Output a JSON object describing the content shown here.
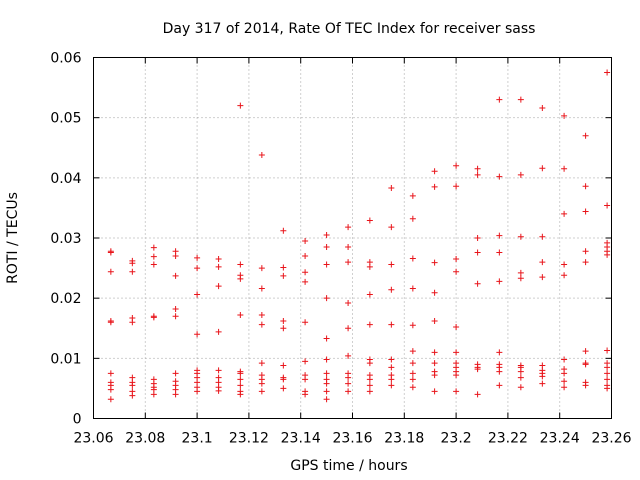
{
  "chart_data": {
    "type": "scatter",
    "title": "Day 317 of 2014, Rate Of TEC Index for receiver sass",
    "xlabel": "GPS time / hours",
    "ylabel": "ROTI / TECUs",
    "xlim": [
      23.06,
      23.26
    ],
    "ylim": [
      0,
      0.06
    ],
    "xticks": [
      23.06,
      23.08,
      23.1,
      23.12,
      23.14,
      23.16,
      23.18,
      23.2,
      23.22,
      23.24,
      23.26
    ],
    "xtick_labels": [
      "23.06",
      "23.08",
      "23.1",
      "23.12",
      "23.14",
      "23.16",
      "23.18",
      "23.2",
      "23.22",
      "23.24",
      "23.26"
    ],
    "yticks": [
      0,
      0.01,
      0.02,
      0.03,
      0.04,
      0.05,
      0.06
    ],
    "ytick_labels": [
      "0",
      "0.01",
      "0.02",
      "0.03",
      "0.04",
      "0.05",
      "0.06"
    ],
    "grid": true,
    "marker": "+",
    "color": "#e8141a",
    "series": [
      {
        "name": "ROTI",
        "points": [
          [
            23.0667,
            0.0278
          ],
          [
            23.0667,
            0.0276
          ],
          [
            23.0667,
            0.0244
          ],
          [
            23.0667,
            0.0162
          ],
          [
            23.0667,
            0.016
          ],
          [
            23.0667,
            0.0075
          ],
          [
            23.0667,
            0.006
          ],
          [
            23.0667,
            0.0055
          ],
          [
            23.0667,
            0.0048
          ],
          [
            23.0667,
            0.0032
          ],
          [
            23.075,
            0.0262
          ],
          [
            23.075,
            0.0258
          ],
          [
            23.075,
            0.0244
          ],
          [
            23.075,
            0.0167
          ],
          [
            23.075,
            0.016
          ],
          [
            23.075,
            0.0068
          ],
          [
            23.075,
            0.006
          ],
          [
            23.075,
            0.0055
          ],
          [
            23.075,
            0.0045
          ],
          [
            23.075,
            0.0038
          ],
          [
            23.0833,
            0.0284
          ],
          [
            23.0833,
            0.0269
          ],
          [
            23.0833,
            0.0256
          ],
          [
            23.0833,
            0.017
          ],
          [
            23.0833,
            0.0168
          ],
          [
            23.0833,
            0.0065
          ],
          [
            23.0833,
            0.0058
          ],
          [
            23.0833,
            0.0052
          ],
          [
            23.0833,
            0.0048
          ],
          [
            23.0833,
            0.004
          ],
          [
            23.0917,
            0.0278
          ],
          [
            23.0917,
            0.027
          ],
          [
            23.0917,
            0.0237
          ],
          [
            23.0917,
            0.0182
          ],
          [
            23.0917,
            0.017
          ],
          [
            23.0917,
            0.0075
          ],
          [
            23.0917,
            0.0062
          ],
          [
            23.0917,
            0.0055
          ],
          [
            23.0917,
            0.0048
          ],
          [
            23.0917,
            0.004
          ],
          [
            23.1,
            0.0267
          ],
          [
            23.1,
            0.025
          ],
          [
            23.1,
            0.0206
          ],
          [
            23.1,
            0.014
          ],
          [
            23.1,
            0.008
          ],
          [
            23.1,
            0.0075
          ],
          [
            23.1,
            0.0068
          ],
          [
            23.1,
            0.006
          ],
          [
            23.1,
            0.0052
          ],
          [
            23.1,
            0.0045
          ],
          [
            23.1083,
            0.0265
          ],
          [
            23.1083,
            0.0252
          ],
          [
            23.1083,
            0.022
          ],
          [
            23.1083,
            0.0144
          ],
          [
            23.1083,
            0.008
          ],
          [
            23.1083,
            0.0068
          ],
          [
            23.1083,
            0.006
          ],
          [
            23.1083,
            0.0052
          ],
          [
            23.1083,
            0.0046
          ],
          [
            23.1167,
            0.052
          ],
          [
            23.1167,
            0.0256
          ],
          [
            23.1167,
            0.0238
          ],
          [
            23.1167,
            0.0232
          ],
          [
            23.1167,
            0.0172
          ],
          [
            23.1167,
            0.0078
          ],
          [
            23.1167,
            0.0075
          ],
          [
            23.1167,
            0.0065
          ],
          [
            23.1167,
            0.0055
          ],
          [
            23.1167,
            0.0045
          ],
          [
            23.1167,
            0.004
          ],
          [
            23.125,
            0.0438
          ],
          [
            23.125,
            0.025
          ],
          [
            23.125,
            0.0216
          ],
          [
            23.125,
            0.0172
          ],
          [
            23.125,
            0.0156
          ],
          [
            23.125,
            0.0092
          ],
          [
            23.125,
            0.0072
          ],
          [
            23.125,
            0.0065
          ],
          [
            23.125,
            0.0058
          ],
          [
            23.125,
            0.0045
          ],
          [
            23.1333,
            0.0312
          ],
          [
            23.1333,
            0.0251
          ],
          [
            23.1333,
            0.0237
          ],
          [
            23.1333,
            0.0162
          ],
          [
            23.1333,
            0.015
          ],
          [
            23.1333,
            0.0088
          ],
          [
            23.1333,
            0.0068
          ],
          [
            23.1333,
            0.0065
          ],
          [
            23.1333,
            0.005
          ],
          [
            23.1417,
            0.0295
          ],
          [
            23.1417,
            0.027
          ],
          [
            23.1417,
            0.0243
          ],
          [
            23.1417,
            0.0227
          ],
          [
            23.1417,
            0.016
          ],
          [
            23.1417,
            0.0095
          ],
          [
            23.1417,
            0.0072
          ],
          [
            23.1417,
            0.0065
          ],
          [
            23.1417,
            0.0045
          ],
          [
            23.1417,
            0.004
          ],
          [
            23.15,
            0.0305
          ],
          [
            23.15,
            0.0285
          ],
          [
            23.15,
            0.0256
          ],
          [
            23.15,
            0.02
          ],
          [
            23.15,
            0.0133
          ],
          [
            23.15,
            0.0098
          ],
          [
            23.15,
            0.0075
          ],
          [
            23.15,
            0.0065
          ],
          [
            23.15,
            0.0058
          ],
          [
            23.15,
            0.0045
          ],
          [
            23.15,
            0.0032
          ],
          [
            23.1583,
            0.0318
          ],
          [
            23.1583,
            0.0285
          ],
          [
            23.1583,
            0.026
          ],
          [
            23.1583,
            0.0192
          ],
          [
            23.1583,
            0.015
          ],
          [
            23.1583,
            0.0104
          ],
          [
            23.1583,
            0.0075
          ],
          [
            23.1583,
            0.0068
          ],
          [
            23.1583,
            0.0058
          ],
          [
            23.1583,
            0.0045
          ],
          [
            23.1667,
            0.0329
          ],
          [
            23.1667,
            0.026
          ],
          [
            23.1667,
            0.0252
          ],
          [
            23.1667,
            0.0206
          ],
          [
            23.1667,
            0.0156
          ],
          [
            23.1667,
            0.0098
          ],
          [
            23.1667,
            0.0092
          ],
          [
            23.1667,
            0.0072
          ],
          [
            23.1667,
            0.0065
          ],
          [
            23.1667,
            0.0055
          ],
          [
            23.1667,
            0.0045
          ],
          [
            23.175,
            0.0383
          ],
          [
            23.175,
            0.0318
          ],
          [
            23.175,
            0.0256
          ],
          [
            23.175,
            0.0214
          ],
          [
            23.175,
            0.0156
          ],
          [
            23.175,
            0.0098
          ],
          [
            23.175,
            0.0085
          ],
          [
            23.175,
            0.0072
          ],
          [
            23.175,
            0.0065
          ],
          [
            23.175,
            0.0055
          ],
          [
            23.1833,
            0.037
          ],
          [
            23.1833,
            0.0332
          ],
          [
            23.1833,
            0.0266
          ],
          [
            23.1833,
            0.0216
          ],
          [
            23.1833,
            0.0155
          ],
          [
            23.1833,
            0.0112
          ],
          [
            23.1833,
            0.0092
          ],
          [
            23.1833,
            0.0075
          ],
          [
            23.1833,
            0.0065
          ],
          [
            23.1833,
            0.0052
          ],
          [
            23.1917,
            0.0411
          ],
          [
            23.1917,
            0.0385
          ],
          [
            23.1917,
            0.0259
          ],
          [
            23.1917,
            0.0209
          ],
          [
            23.1917,
            0.0162
          ],
          [
            23.1917,
            0.011
          ],
          [
            23.1917,
            0.0092
          ],
          [
            23.1917,
            0.0078
          ],
          [
            23.1917,
            0.0072
          ],
          [
            23.1917,
            0.0045
          ],
          [
            23.2,
            0.042
          ],
          [
            23.2,
            0.0386
          ],
          [
            23.2,
            0.0265
          ],
          [
            23.2,
            0.0244
          ],
          [
            23.2,
            0.0152
          ],
          [
            23.2,
            0.011
          ],
          [
            23.2,
            0.0092
          ],
          [
            23.2,
            0.0085
          ],
          [
            23.2,
            0.0078
          ],
          [
            23.2,
            0.0072
          ],
          [
            23.2,
            0.0045
          ],
          [
            23.2083,
            0.0415
          ],
          [
            23.2083,
            0.0405
          ],
          [
            23.2083,
            0.03
          ],
          [
            23.2083,
            0.0276
          ],
          [
            23.2083,
            0.0224
          ],
          [
            23.2083,
            0.009
          ],
          [
            23.2083,
            0.0085
          ],
          [
            23.2083,
            0.0082
          ],
          [
            23.2083,
            0.004
          ],
          [
            23.2167,
            0.053
          ],
          [
            23.2167,
            0.0402
          ],
          [
            23.2167,
            0.0304
          ],
          [
            23.2167,
            0.0276
          ],
          [
            23.2167,
            0.0228
          ],
          [
            23.2167,
            0.011
          ],
          [
            23.2167,
            0.009
          ],
          [
            23.2167,
            0.0085
          ],
          [
            23.2167,
            0.0078
          ],
          [
            23.2167,
            0.0055
          ],
          [
            23.225,
            0.053
          ],
          [
            23.225,
            0.0405
          ],
          [
            23.225,
            0.0302
          ],
          [
            23.225,
            0.0242
          ],
          [
            23.225,
            0.0233
          ],
          [
            23.225,
            0.0088
          ],
          [
            23.225,
            0.0085
          ],
          [
            23.225,
            0.0078
          ],
          [
            23.225,
            0.0068
          ],
          [
            23.225,
            0.0052
          ],
          [
            23.2333,
            0.0516
          ],
          [
            23.2333,
            0.0416
          ],
          [
            23.2333,
            0.0302
          ],
          [
            23.2333,
            0.026
          ],
          [
            23.2333,
            0.0235
          ],
          [
            23.2333,
            0.0088
          ],
          [
            23.2333,
            0.008
          ],
          [
            23.2333,
            0.0075
          ],
          [
            23.2333,
            0.007
          ],
          [
            23.2333,
            0.0058
          ],
          [
            23.2417,
            0.0503
          ],
          [
            23.2417,
            0.0415
          ],
          [
            23.2417,
            0.034
          ],
          [
            23.2417,
            0.0256
          ],
          [
            23.2417,
            0.0238
          ],
          [
            23.2417,
            0.0098
          ],
          [
            23.2417,
            0.0082
          ],
          [
            23.2417,
            0.0075
          ],
          [
            23.2417,
            0.0062
          ],
          [
            23.2417,
            0.0052
          ],
          [
            23.25,
            0.047
          ],
          [
            23.25,
            0.0386
          ],
          [
            23.25,
            0.0344
          ],
          [
            23.25,
            0.0278
          ],
          [
            23.25,
            0.026
          ],
          [
            23.25,
            0.0112
          ],
          [
            23.25,
            0.0092
          ],
          [
            23.25,
            0.009
          ],
          [
            23.25,
            0.006
          ],
          [
            23.25,
            0.0055
          ],
          [
            23.2583,
            0.0575
          ],
          [
            23.2583,
            0.0354
          ],
          [
            23.2583,
            0.0292
          ],
          [
            23.2583,
            0.0285
          ],
          [
            23.2583,
            0.0278
          ],
          [
            23.2583,
            0.0272
          ],
          [
            23.2583,
            0.0113
          ],
          [
            23.2583,
            0.0092
          ],
          [
            23.2583,
            0.0085
          ],
          [
            23.2583,
            0.0075
          ],
          [
            23.2583,
            0.0065
          ],
          [
            23.2583,
            0.0055
          ],
          [
            23.2583,
            0.005
          ]
        ]
      }
    ]
  }
}
